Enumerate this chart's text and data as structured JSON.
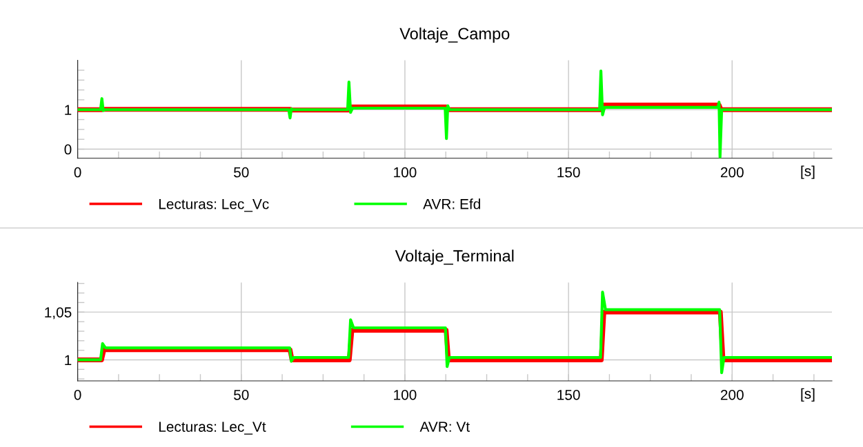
{
  "chart_data": [
    {
      "type": "line",
      "title": "Voltaje_Campo",
      "xlabel": "[s]",
      "grid": true,
      "legend": "bottom",
      "line_style": "solid",
      "xlim": [
        0,
        230.5
      ],
      "xticks": [
        0,
        {
          "value": 12.5,
          "label": null
        },
        {
          "value": 25,
          "label": null
        },
        {
          "value": 37.5,
          "label": null
        },
        50,
        {
          "value": 62.5,
          "label": null
        },
        {
          "value": 75,
          "label": null
        },
        {
          "value": 87.5,
          "label": null
        },
        100,
        {
          "value": 112.5,
          "label": null
        },
        {
          "value": 125,
          "label": null
        },
        {
          "value": 137.5,
          "label": null
        },
        150,
        {
          "value": 162.5,
          "label": null
        },
        {
          "value": 175,
          "label": null
        },
        {
          "value": 187.5,
          "label": null
        },
        200,
        {
          "value": 212.5,
          "label": null
        },
        {
          "value": 225,
          "label": null
        }
      ],
      "ylim": [
        -0.23,
        2.25
      ],
      "yticks": [
        0,
        {
          "value": 0.25,
          "label": null
        },
        {
          "value": 0.5,
          "label": null
        },
        {
          "value": 0.75,
          "label": null
        },
        1,
        {
          "value": 1.25,
          "label": null
        },
        {
          "value": 1.5,
          "label": null
        },
        {
          "value": 1.75,
          "label": null
        },
        {
          "value": 2,
          "label": null
        }
      ],
      "series": [
        {
          "name": "Lecturas: Lec_Vc",
          "color": "#ff0000",
          "x": [
            0,
            7.4,
            7.8,
            65,
            65.5,
            83,
            83.5,
            112.7,
            113.2,
            160,
            160.5,
            196,
            196.6,
            230.5
          ],
          "values": [
            1.0,
            1.0,
            1.01,
            1.01,
            0.99,
            0.99,
            1.07,
            1.07,
            1.0,
            1.0,
            1.12,
            1.12,
            1.0,
            1.0
          ]
        },
        {
          "name": "AVR: Efd",
          "color": "#00ff00",
          "x": [
            0,
            7.0,
            7.4,
            7.8,
            8.3,
            64.5,
            64.9,
            65.3,
            65.8,
            82.5,
            82.9,
            83.4,
            84,
            112.3,
            112.7,
            113.1,
            113.6,
            159.5,
            159.9,
            160.4,
            161,
            195.7,
            196,
            196.3,
            196.8,
            230.5
          ],
          "values": [
            1.0,
            1.0,
            1.28,
            0.98,
            1.0,
            1.0,
            0.79,
            1.02,
            1.0,
            1.0,
            1.7,
            0.93,
            1.04,
            1.04,
            0.27,
            1.1,
            1.0,
            1.0,
            1.98,
            0.87,
            1.06,
            1.06,
            1.19,
            -0.2,
            1.0,
            1.0
          ]
        }
      ]
    },
    {
      "type": "line",
      "title": "Voltaje_Terminal",
      "xlabel": "[s]",
      "grid": true,
      "legend": "bottom",
      "line_style": "solid",
      "xlim": [
        0,
        230.5
      ],
      "xticks": [
        0,
        {
          "value": 12.5,
          "label": null
        },
        {
          "value": 25,
          "label": null
        },
        {
          "value": 37.5,
          "label": null
        },
        50,
        {
          "value": 62.5,
          "label": null
        },
        {
          "value": 75,
          "label": null
        },
        {
          "value": 87.5,
          "label": null
        },
        100,
        {
          "value": 112.5,
          "label": null
        },
        {
          "value": 125,
          "label": null
        },
        {
          "value": 137.5,
          "label": null
        },
        150,
        {
          "value": 162.5,
          "label": null
        },
        {
          "value": 175,
          "label": null
        },
        {
          "value": 187.5,
          "label": null
        },
        200,
        {
          "value": 212.5,
          "label": null
        },
        {
          "value": 225,
          "label": null
        }
      ],
      "ylim": [
        0.978,
        1.081
      ],
      "yticks": [
        {
          "value": 0.98,
          "label": null
        },
        {
          "value": 0.99,
          "label": null
        },
        1,
        {
          "value": 1.01,
          "label": null
        },
        {
          "value": 1.02,
          "label": null
        },
        {
          "value": 1.03,
          "label": null
        },
        {
          "value": 1.04,
          "label": null
        },
        {
          "value": 1.05,
          "label": "1,05"
        },
        {
          "value": 1.06,
          "label": null
        },
        {
          "value": 1.07,
          "label": null
        },
        {
          "value": 1.08,
          "label": null
        }
      ],
      "series": [
        {
          "name": "Lecturas: Lec_Vt",
          "color": "#ff0000",
          "x": [
            0,
            7.3,
            8.0,
            64.9,
            65.5,
            83.0,
            83.8,
            112.6,
            113.3,
            160.0,
            160.8,
            196.4,
            197.2,
            230.5
          ],
          "values": [
            1.0,
            1.0,
            1.0105,
            1.0105,
            1.0,
            1.0,
            1.031,
            1.031,
            1.0,
            1.0,
            1.05,
            1.05,
            1.0,
            1.0
          ]
        },
        {
          "name": "AVR: Vt",
          "color": "#00ff00",
          "x": [
            0,
            7,
            7.6,
            8.5,
            64.8,
            65.3,
            66,
            82.8,
            83.4,
            84.3,
            112.4,
            112.9,
            113.6,
            159.8,
            160.4,
            161.3,
            196.2,
            196.8,
            197.5,
            230.5
          ],
          "values": [
            1.0,
            1.0,
            1.017,
            1.0125,
            1.0125,
            0.9985,
            1.0025,
            1.0025,
            1.042,
            1.0335,
            1.0335,
            0.993,
            1.0025,
            1.0025,
            1.071,
            1.0525,
            1.0525,
            0.9865,
            1.0025,
            1.0025
          ]
        }
      ]
    }
  ]
}
